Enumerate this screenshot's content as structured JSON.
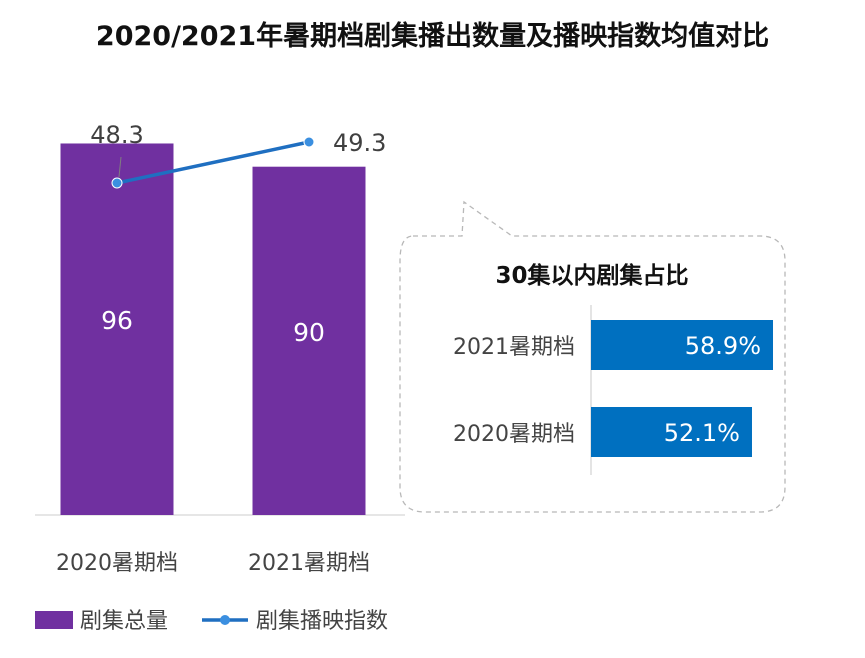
{
  "title": "2020/2021年暑期档剧集播出数量及播映指数均值对比",
  "chart_data": [
    {
      "type": "bar",
      "categories": [
        "2020暑期档",
        "2021暑期档"
      ],
      "series": [
        {
          "name": "剧集总量",
          "kind": "bar",
          "values": [
            96,
            90
          ],
          "labels": [
            "96",
            "90"
          ],
          "color": "#7030a0"
        },
        {
          "name": "剧集播映指数",
          "kind": "line",
          "values": [
            48.3,
            49.3
          ],
          "labels": [
            "48.3",
            "49.3"
          ],
          "color": "#1f6fc1"
        }
      ],
      "legend_position": "bottom-left"
    },
    {
      "type": "bar",
      "orientation": "horizontal",
      "title": "30集以内剧集占比",
      "categories": [
        "2021暑期档",
        "2020暑期档"
      ],
      "values": [
        58.9,
        52.1
      ],
      "labels": [
        "58.9%",
        "52.1%"
      ],
      "unit": "%",
      "color": "#0070c0"
    }
  ]
}
